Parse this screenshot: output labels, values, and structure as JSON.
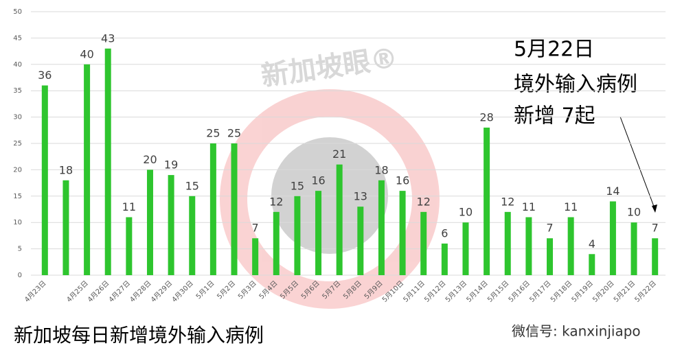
{
  "chart_data": {
    "type": "bar",
    "title": "新加坡每日新增境外输入病例",
    "annotation": [
      "5月22日",
      "境外输入病例",
      "新增 7起"
    ],
    "watermark": "新加坡眼®",
    "credit": "微信号: kanxinjiapo",
    "categories": [
      "4月23日",
      null,
      "4月25日",
      "4月26日",
      "4月27日",
      "4月28日",
      "4月29日",
      "4月30日",
      "5月1日",
      "5月2日",
      "5月3日",
      "5月4日",
      "5月5日",
      "5月6日",
      "5月7日",
      "5月8日",
      "5月9日",
      "5月10日",
      "5月11日",
      "5月12日",
      "5月13日",
      "5月14日",
      "5月15日",
      "5月16日",
      "5月17日",
      "5月18日",
      "5月19日",
      "5月20日",
      "5月21日",
      "5月22日"
    ],
    "values": [
      36,
      18,
      40,
      43,
      11,
      20,
      19,
      15,
      25,
      25,
      7,
      12,
      15,
      16,
      21,
      13,
      18,
      16,
      12,
      6,
      10,
      28,
      12,
      11,
      7,
      11,
      4,
      14,
      10,
      7
    ],
    "color": "#2ec52e",
    "ylim": [
      0,
      50
    ],
    "yticks": [
      0,
      5,
      10,
      15,
      20,
      25,
      30,
      35,
      40,
      45,
      50
    ],
    "grid": true
  }
}
